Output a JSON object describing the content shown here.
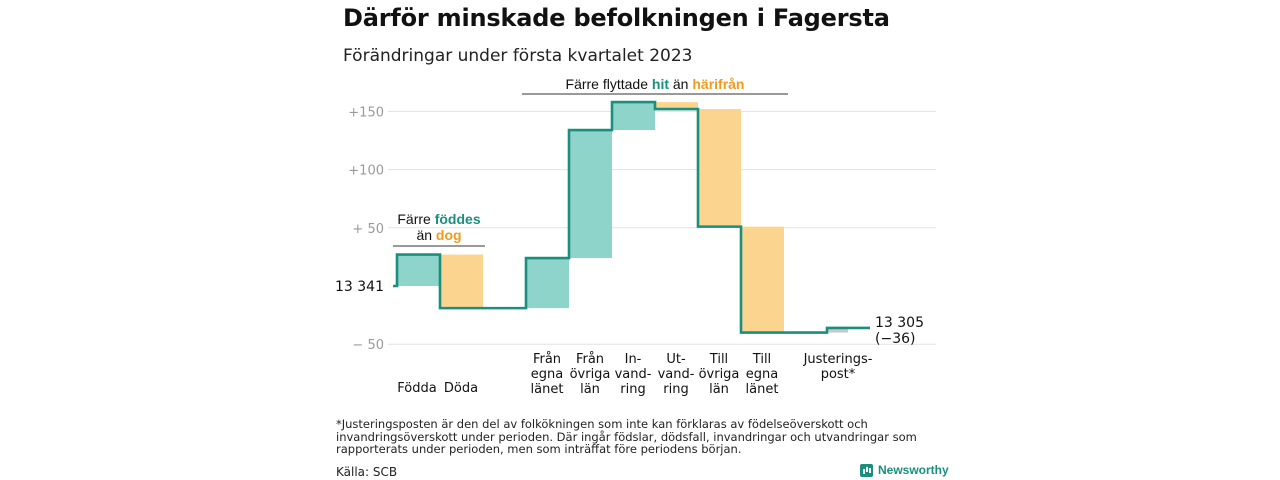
{
  "header": {
    "title": "Därför minskade befolkningen i Fagersta",
    "subtitle": "Förändringar under första kvartalet 2023"
  },
  "colors": {
    "increase": "#8ed4ca",
    "decrease": "#fbd490",
    "adjustment": "#c8c8c8",
    "line": "#1a8f7e",
    "orange_text": "#f29a1c",
    "grid": "#e3e3e3",
    "axis_text": "#9a9a9a"
  },
  "chart_data": {
    "type": "waterfall",
    "start_label": "13 341",
    "start_value": 0,
    "end_label": "13 305",
    "end_sublabel": "(−36)",
    "end_value": -36,
    "ylim": [
      -55,
      160
    ],
    "yticks": [
      {
        "value": 150,
        "label": "+150"
      },
      {
        "value": 100,
        "label": "+100"
      },
      {
        "value": 50,
        "label": "+ 50"
      },
      {
        "value": 0,
        "label": "13 341"
      },
      {
        "value": -50,
        "label": "− 50"
      }
    ],
    "categories": [
      {
        "lines": [
          "Födda"
        ],
        "change": 27,
        "kind": "increase"
      },
      {
        "lines": [
          "Döda"
        ],
        "change": -46,
        "kind": "decrease"
      },
      {
        "lines": [
          "Från",
          "egna",
          "länet"
        ],
        "change": 43,
        "kind": "increase"
      },
      {
        "lines": [
          "Från",
          "övriga",
          "län"
        ],
        "change": 110,
        "kind": "increase"
      },
      {
        "lines": [
          "In-",
          "vand-",
          "ring"
        ],
        "change": 24,
        "kind": "increase"
      },
      {
        "lines": [
          "Ut-",
          "vand-",
          "ring"
        ],
        "change": -6,
        "kind": "decrease"
      },
      {
        "lines": [
          "Till",
          "övriga",
          "län"
        ],
        "change": -101,
        "kind": "decrease"
      },
      {
        "lines": [
          "Till",
          "egna",
          "länet"
        ],
        "change": -91,
        "kind": "decrease"
      },
      {
        "lines": [
          "Justerings-",
          "post*"
        ],
        "change": 4,
        "kind": "adjustment"
      }
    ],
    "annotations": {
      "births": {
        "line1": "Färre",
        "word1": "föddes",
        "line2": "än",
        "word2": "dog"
      },
      "migration": {
        "prefix": "Färre flyttade",
        "word1": "hit",
        "middle": "än",
        "word2": "härifrån"
      }
    }
  },
  "footnote": "*Justeringsposten är den del av folkökningen som inte kan förklaras av födelseöverskott och invandringsöverskott under perioden. Där ingår födslar, dödsfall, invandringar och utvandringar som rapporterats under perioden, men som inträffat före periodens början.",
  "source": "Källa: SCB",
  "brand": "Newsworthy"
}
